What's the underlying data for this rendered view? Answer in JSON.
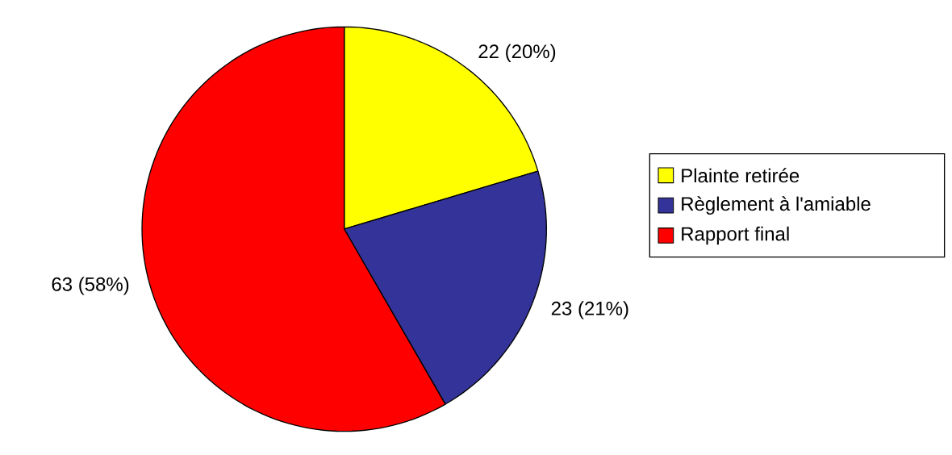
{
  "chart_data": {
    "type": "pie",
    "categories": [
      "Plainte retirée",
      "Règlement à l'amiable",
      "Rapport final"
    ],
    "values": [
      22,
      23,
      63
    ],
    "colors": [
      "#ffff00",
      "#333399",
      "#ff0000"
    ],
    "value_labels": [
      "22 (20%)",
      "23 (21%)",
      "63 (58%)"
    ],
    "legend": "right"
  }
}
